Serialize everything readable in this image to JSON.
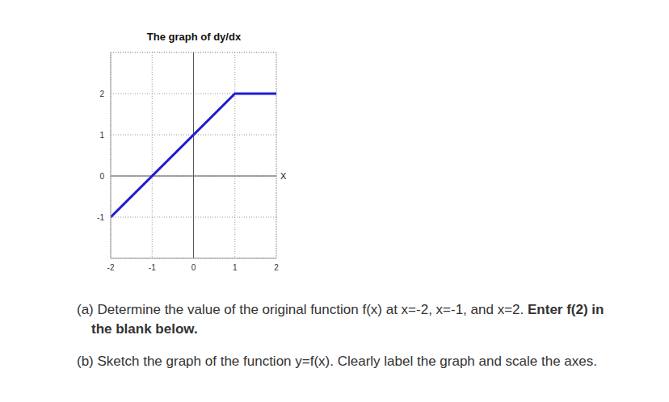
{
  "chart_data": {
    "type": "line",
    "title": "The graph of dy/dx",
    "x_label": "X",
    "x": [
      -2,
      1,
      2
    ],
    "values": [
      -1,
      2,
      2
    ],
    "color": "#1c1cd6",
    "xlim": [
      -2,
      2
    ],
    "xticks": [
      -2,
      -1,
      0,
      1,
      2
    ],
    "ylim": [
      -2,
      3
    ],
    "yticks": [
      -1,
      0,
      1,
      2
    ],
    "grid": true
  },
  "questions": [
    {
      "text": "(a) Determine the value of the original function f(x) at x=-2, x=-1, and x=2.",
      "bold": "Enter f(2) in the blank below."
    },
    {
      "text": "(b) Sketch the graph of the function y=f(x). Clearly label the graph and scale the axes.",
      "bold": null
    }
  ]
}
